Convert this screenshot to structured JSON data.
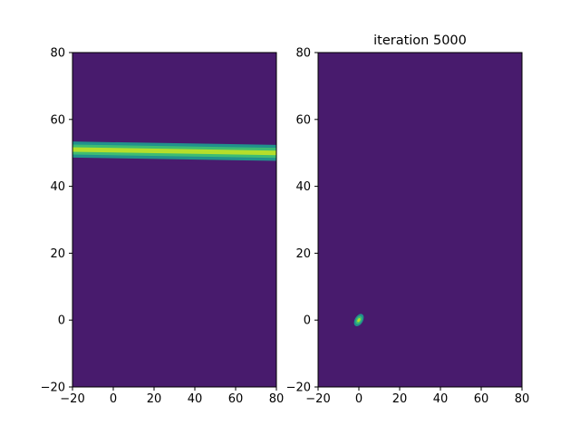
{
  "chart_data": [
    {
      "type": "heatmap",
      "title": "",
      "xlabel": "",
      "ylabel": "",
      "xlim": [
        -20,
        80
      ],
      "ylim": [
        -20,
        80
      ],
      "xticks": [
        "−20",
        "0",
        "20",
        "40",
        "60",
        "80"
      ],
      "yticks": [
        "−20",
        "0",
        "20",
        "40",
        "60",
        "80"
      ],
      "grid": false,
      "colormap": "viridis",
      "background_color": "#481b6d",
      "band_color": "#21918c",
      "peak_color": "#b5de2b",
      "feature": {
        "kind": "horizontal-ridge",
        "x_start": -20,
        "x_end": 80,
        "y_start": 51,
        "y_end": 50,
        "half_width": 1.5
      }
    },
    {
      "type": "heatmap",
      "title": "iteration 5000",
      "xlabel": "",
      "ylabel": "",
      "xlim": [
        -20,
        80
      ],
      "ylim": [
        -20,
        80
      ],
      "xticks": [
        "−20",
        "0",
        "20",
        "40",
        "60",
        "80"
      ],
      "yticks": [
        "−20",
        "0",
        "20",
        "40",
        "60",
        "80"
      ],
      "grid": false,
      "colormap": "viridis",
      "background_color": "#481b6d",
      "band_color": "#21918c",
      "peak_color": "#b5de2b",
      "feature": {
        "kind": "point-blob",
        "x": 0,
        "y": 0,
        "radius_x": 1.6,
        "radius_y": 3.2,
        "tilt_deg": 30
      }
    }
  ]
}
